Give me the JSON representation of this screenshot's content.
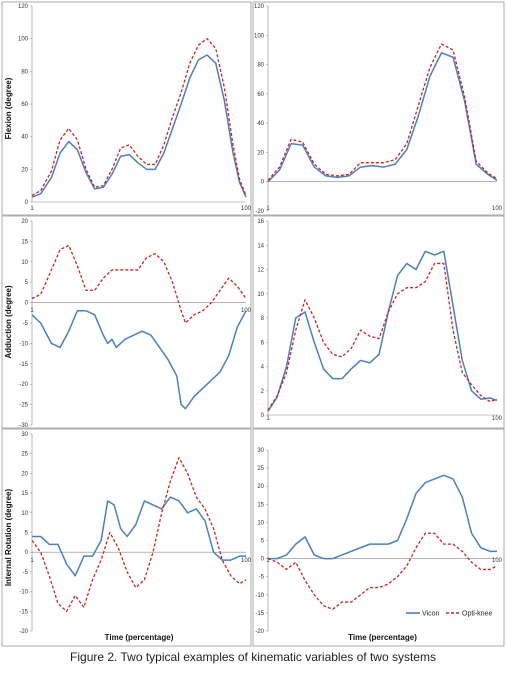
{
  "caption": "Figure 2. Two typical examples of kinematic variables of two systems",
  "colors": {
    "vicon": "#4a7fc1",
    "optiknee": "#cc2222",
    "frame": "#9a9a9a",
    "axis": "#888888"
  },
  "legend": {
    "vicon": "Vicon",
    "optiknee": "Opti-knee"
  },
  "chart_data": [
    {
      "type": "line",
      "ylabel": "Flexion (degree)",
      "xlabel": "",
      "ylim": [
        0,
        120
      ],
      "yticks": [
        0,
        20,
        40,
        60,
        80,
        100,
        120
      ],
      "xtick_labels": [
        "1",
        "100"
      ],
      "series": [
        {
          "name": "Vicon",
          "x": [
            1,
            5,
            10,
            14,
            18,
            22,
            26,
            30,
            34,
            38,
            42,
            46,
            50,
            54,
            58,
            62,
            66,
            70,
            74,
            78,
            82,
            86,
            90,
            94,
            97,
            100
          ],
          "y": [
            3,
            5,
            15,
            30,
            37,
            32,
            18,
            8,
            9,
            17,
            28,
            29,
            24,
            20,
            20,
            30,
            45,
            60,
            76,
            87,
            90,
            85,
            62,
            30,
            12,
            3
          ]
        },
        {
          "name": "Opti-knee",
          "x": [
            1,
            5,
            10,
            14,
            18,
            22,
            26,
            30,
            34,
            38,
            42,
            46,
            50,
            54,
            58,
            62,
            66,
            70,
            74,
            78,
            82,
            86,
            90,
            94,
            97,
            100
          ],
          "y": [
            4,
            7,
            19,
            38,
            45,
            38,
            20,
            9,
            10,
            20,
            33,
            35,
            28,
            23,
            23,
            35,
            52,
            67,
            85,
            96,
            100,
            94,
            70,
            35,
            14,
            4
          ]
        }
      ]
    },
    {
      "type": "line",
      "ylabel": "",
      "xlabel": "",
      "ylim": [
        -20,
        120
      ],
      "yticks": [
        -20,
        0,
        20,
        40,
        60,
        80,
        100,
        120
      ],
      "xtick_labels": [
        "1",
        "100"
      ],
      "series": [
        {
          "name": "Vicon",
          "x": [
            1,
            6,
            11,
            16,
            21,
            26,
            31,
            36,
            41,
            46,
            51,
            56,
            61,
            66,
            71,
            76,
            81,
            86,
            91,
            96,
            100
          ],
          "y": [
            0,
            8,
            26,
            25,
            10,
            4,
            3,
            4,
            10,
            11,
            10,
            12,
            22,
            45,
            72,
            88,
            85,
            55,
            12,
            5,
            1
          ]
        },
        {
          "name": "Opti-knee",
          "x": [
            1,
            6,
            11,
            16,
            21,
            26,
            31,
            36,
            41,
            46,
            51,
            56,
            61,
            66,
            71,
            76,
            81,
            86,
            91,
            96,
            100
          ],
          "y": [
            1,
            10,
            29,
            27,
            12,
            5,
            4,
            5,
            13,
            13,
            13,
            15,
            26,
            52,
            78,
            94,
            90,
            58,
            14,
            6,
            2
          ]
        }
      ]
    },
    {
      "type": "line",
      "ylabel": "Adduction (degree)",
      "xlabel": "",
      "ylim": [
        -30,
        20
      ],
      "yticks": [
        -30,
        -25,
        -20,
        -15,
        -10,
        -5,
        0,
        5,
        10,
        15,
        20
      ],
      "xtick_labels": [
        "1",
        "100"
      ],
      "series": [
        {
          "name": "Vicon",
          "x": [
            1,
            5,
            10,
            14,
            18,
            22,
            26,
            30,
            34,
            36,
            38,
            40,
            44,
            48,
            52,
            56,
            60,
            64,
            68,
            70,
            72,
            76,
            80,
            84,
            88,
            92,
            96,
            100
          ],
          "y": [
            -3,
            -5,
            -10,
            -11,
            -7,
            -2,
            -2,
            -3,
            -8,
            -10,
            -9,
            -11,
            -9,
            -8,
            -7,
            -8,
            -11,
            -14,
            -18,
            -25,
            -26,
            -23,
            -21,
            -19,
            -17,
            -13,
            -6,
            -2
          ]
        },
        {
          "name": "Opti-knee",
          "x": [
            1,
            5,
            10,
            14,
            18,
            22,
            26,
            30,
            34,
            38,
            42,
            46,
            50,
            54,
            58,
            62,
            66,
            70,
            72,
            76,
            80,
            84,
            88,
            92,
            96,
            100
          ],
          "y": [
            1,
            2,
            8,
            13,
            14,
            9,
            3,
            3,
            6,
            8,
            8,
            8,
            8,
            11,
            12,
            10,
            5,
            -2,
            -5,
            -3,
            -2,
            0,
            3,
            6,
            4,
            1
          ]
        }
      ]
    },
    {
      "type": "line",
      "ylabel": "",
      "xlabel": "",
      "ylim": [
        0,
        16
      ],
      "yticks": [
        0,
        2,
        4,
        6,
        8,
        10,
        12,
        14,
        16
      ],
      "xtick_labels": [
        "1",
        "100"
      ],
      "series": [
        {
          "name": "Vicon",
          "x": [
            1,
            5,
            9,
            13,
            17,
            21,
            25,
            29,
            33,
            37,
            41,
            45,
            49,
            53,
            57,
            61,
            65,
            69,
            73,
            77,
            81,
            85,
            89,
            93,
            97,
            100
          ],
          "y": [
            0.3,
            1.5,
            4,
            8,
            8.5,
            6,
            3.8,
            3,
            3,
            3.8,
            4.5,
            4.3,
            5,
            8.5,
            11.5,
            12.5,
            12,
            13.5,
            13.2,
            13.5,
            9,
            4.5,
            2,
            1.3,
            1.4,
            1.2
          ]
        },
        {
          "name": "Opti-knee",
          "x": [
            1,
            5,
            9,
            13,
            17,
            21,
            25,
            29,
            33,
            37,
            41,
            45,
            49,
            53,
            57,
            61,
            65,
            69,
            73,
            77,
            81,
            85,
            89,
            93,
            97,
            100
          ],
          "y": [
            0.4,
            1.6,
            3.5,
            7,
            9.5,
            8,
            6,
            5,
            4.8,
            5.5,
            7,
            6.5,
            6.3,
            8.5,
            10,
            10.5,
            10.5,
            11,
            12.5,
            12.5,
            7,
            3.5,
            2.5,
            1.6,
            1.1,
            1.3
          ]
        }
      ]
    },
    {
      "type": "line",
      "ylabel": "Internal Rotation (degree)",
      "xlabel": "Time (percentage)",
      "ylim": [
        -20,
        30
      ],
      "yticks": [
        -20,
        -15,
        -10,
        -5,
        0,
        5,
        10,
        15,
        20,
        25,
        30
      ],
      "xtick_labels": [
        "1",
        "100"
      ],
      "series": [
        {
          "name": "Vicon",
          "x": [
            1,
            5,
            9,
            13,
            17,
            21,
            25,
            29,
            33,
            36,
            39,
            42,
            45,
            49,
            53,
            57,
            61,
            65,
            69,
            73,
            77,
            81,
            85,
            89,
            93,
            97,
            100
          ],
          "y": [
            4,
            4,
            2,
            2,
            -3,
            -6,
            -1,
            -1,
            3,
            13,
            12,
            6,
            4,
            7,
            13,
            12,
            11,
            14,
            13,
            10,
            11,
            8,
            0,
            -2,
            -2,
            -1,
            -1
          ]
        },
        {
          "name": "Opti-knee",
          "x": [
            1,
            5,
            9,
            13,
            17,
            21,
            25,
            29,
            33,
            37,
            41,
            45,
            49,
            53,
            57,
            61,
            65,
            69,
            73,
            77,
            81,
            85,
            89,
            93,
            97,
            100
          ],
          "y": [
            3,
            0,
            -6,
            -13,
            -15,
            -11,
            -14,
            -7,
            -2,
            5,
            1,
            -5,
            -9,
            -7,
            0,
            10,
            18,
            24,
            20,
            14,
            11,
            6,
            -2,
            -6,
            -8,
            -7
          ]
        }
      ]
    },
    {
      "type": "line",
      "ylabel": "",
      "xlabel": "Time (percentage)",
      "ylim": [
        -20,
        30
      ],
      "yticks": [
        -20,
        -15,
        -10,
        -5,
        0,
        5,
        10,
        15,
        20,
        25,
        30
      ],
      "xtick_labels": [
        "1",
        "100"
      ],
      "series": [
        {
          "name": "Vicon",
          "x": [
            1,
            5,
            9,
            13,
            17,
            21,
            25,
            29,
            33,
            37,
            41,
            45,
            49,
            53,
            57,
            61,
            65,
            69,
            73,
            77,
            81,
            85,
            89,
            93,
            97,
            100
          ],
          "y": [
            0,
            0,
            1,
            4,
            6,
            1,
            0,
            0,
            1,
            2,
            3,
            4,
            4,
            4,
            5,
            11,
            18,
            21,
            22,
            23,
            22,
            17,
            7,
            3,
            2,
            2
          ]
        },
        {
          "name": "Opti-knee",
          "x": [
            1,
            5,
            9,
            13,
            17,
            21,
            25,
            29,
            33,
            37,
            41,
            45,
            49,
            53,
            57,
            61,
            65,
            69,
            73,
            77,
            81,
            85,
            89,
            93,
            97,
            100
          ],
          "y": [
            0,
            -1,
            -3,
            -1,
            -6,
            -10,
            -13,
            -14,
            -12,
            -12,
            -10,
            -8,
            -8,
            -7,
            -5,
            -2,
            3,
            7,
            7,
            4,
            4,
            2,
            -1,
            -3,
            -3,
            -2
          ]
        }
      ]
    }
  ]
}
